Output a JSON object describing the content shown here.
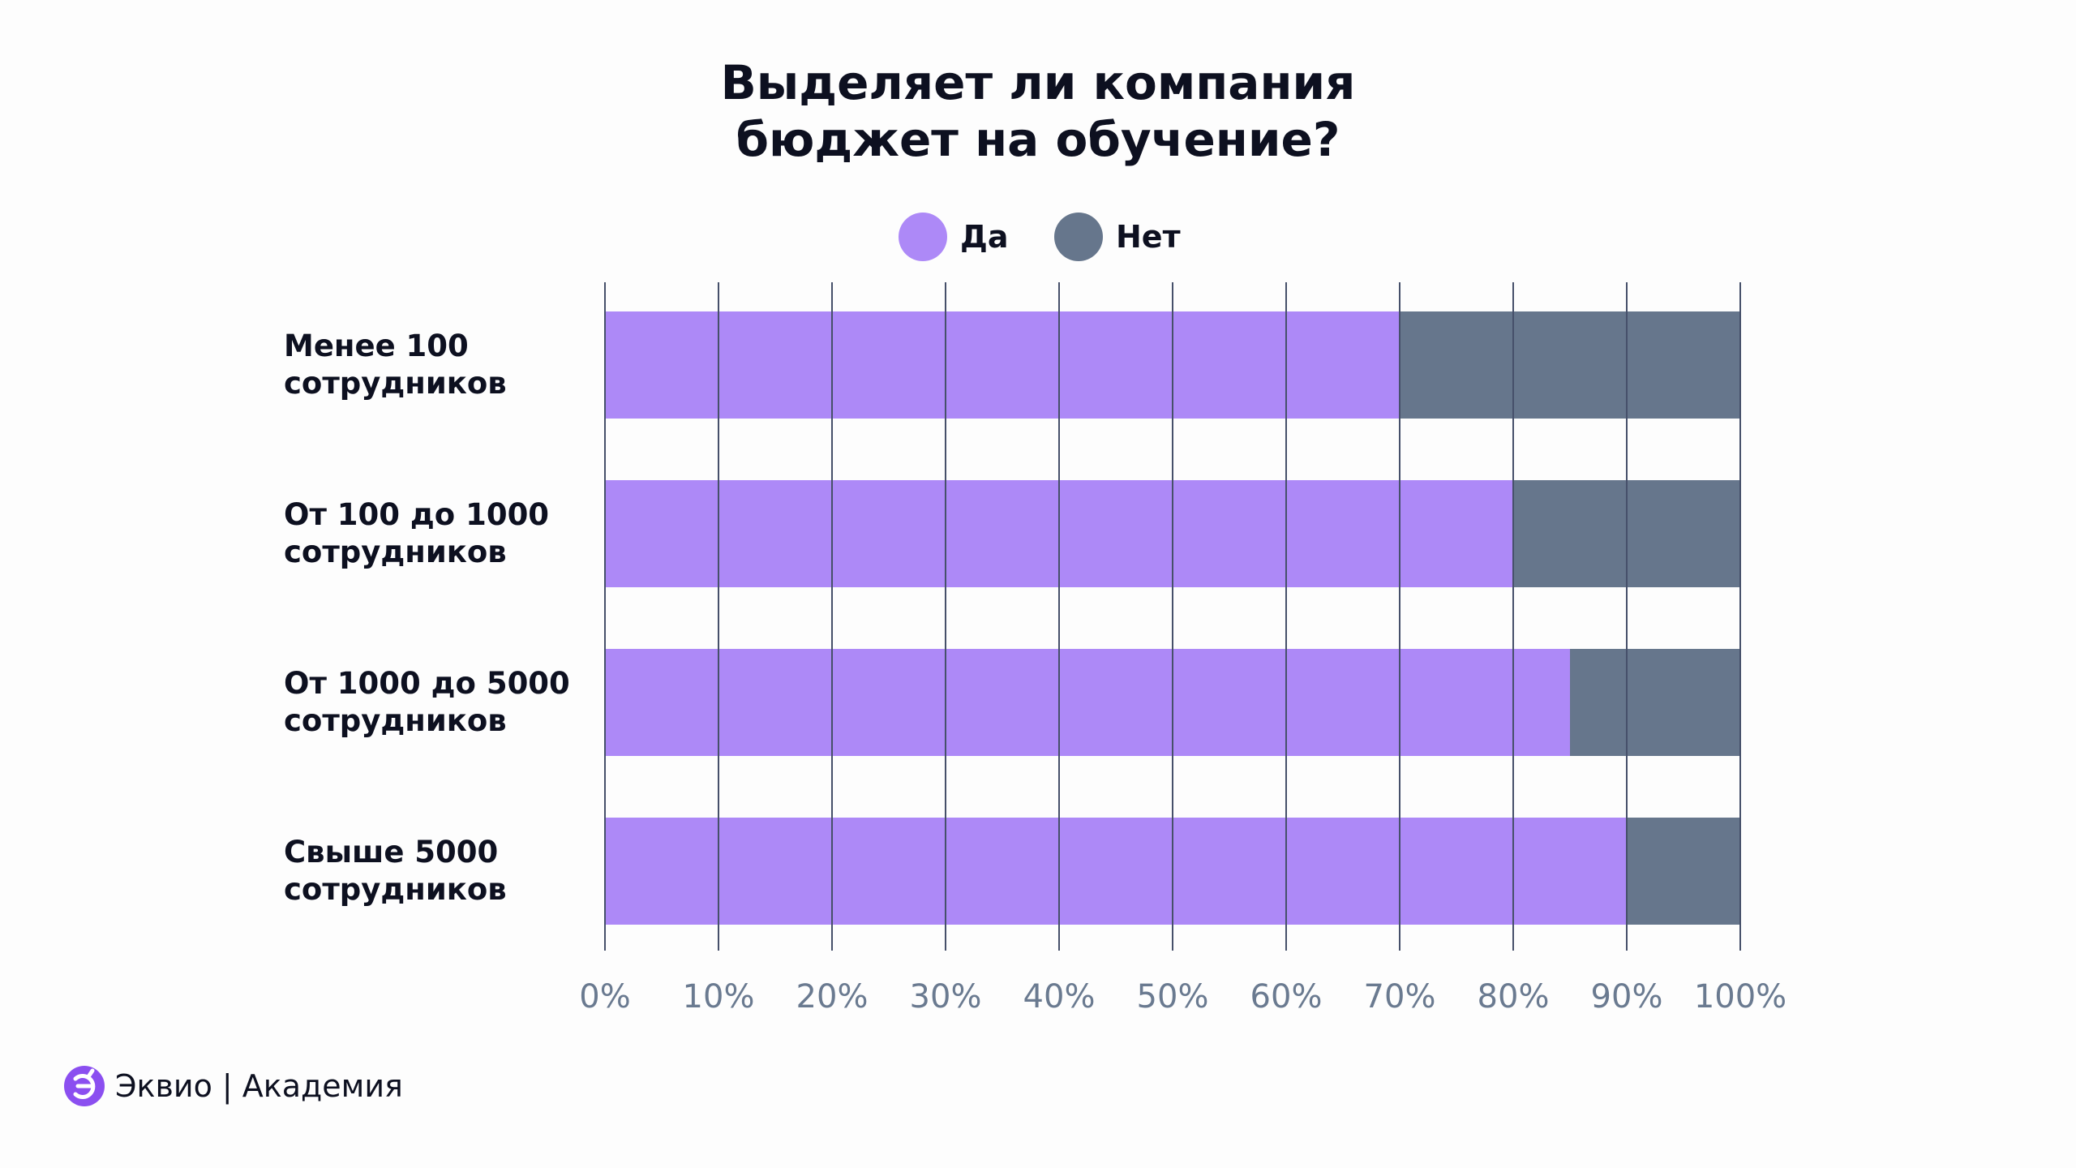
{
  "chart_data": {
    "type": "bar",
    "orientation": "horizontal",
    "stacked": true,
    "title": [
      "Выделяет ли компания",
      "бюджет на обучение?"
    ],
    "categories": [
      [
        "Менее 100",
        "сотрудников"
      ],
      [
        "От 100 до 1000",
        "сотрудников"
      ],
      [
        "От 1000 до 5000",
        "сотрудников"
      ],
      [
        "Свыше 5000",
        "сотрудников"
      ]
    ],
    "series": [
      {
        "name": "Да",
        "values": [
          70,
          80,
          85,
          90
        ],
        "color": "#ad89f7"
      },
      {
        "name": "Нет",
        "values": [
          30,
          20,
          15,
          10
        ],
        "color": "#66768c"
      }
    ],
    "xlim": [
      0,
      100
    ],
    "xticks": [
      "0%",
      "10%",
      "20%",
      "30%",
      "40%",
      "50%",
      "60%",
      "70%",
      "80%",
      "90%",
      "100%"
    ],
    "grid": true,
    "legend": "top-center",
    "xlabel": "",
    "ylabel": ""
  },
  "branding": {
    "logo_text": "Эквио | Академия",
    "logo_color": "#8b4ff0"
  }
}
